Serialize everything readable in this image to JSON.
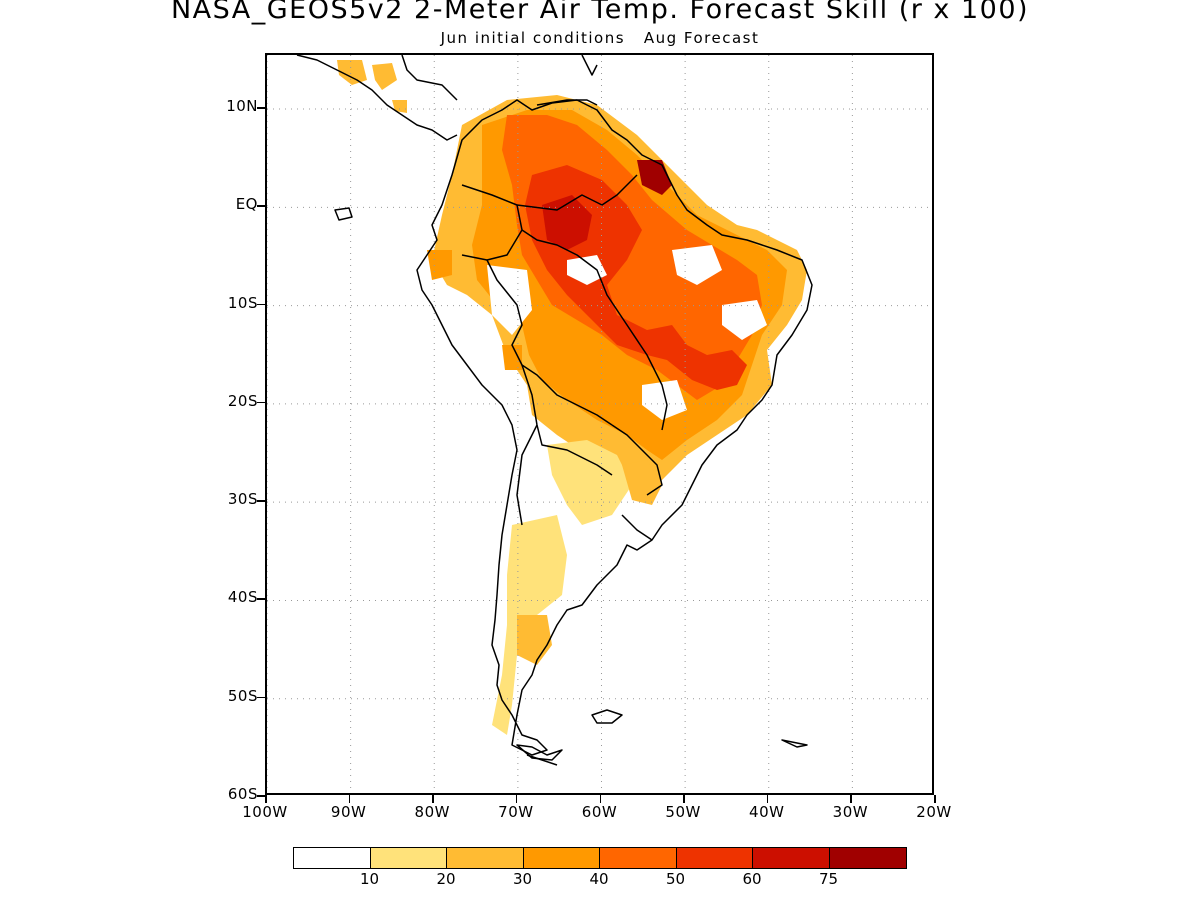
{
  "title": "NASA_GEOS5v2 2-Meter Air Temp. Forecast Skill (r x 100)",
  "subtitle": "Jun initial conditions   Aug Forecast",
  "lat_labels": [
    {
      "lat": 10,
      "text": "10N"
    },
    {
      "lat": 0,
      "text": "EQ"
    },
    {
      "lat": -10,
      "text": "10S"
    },
    {
      "lat": -20,
      "text": "20S"
    },
    {
      "lat": -30,
      "text": "30S"
    },
    {
      "lat": -40,
      "text": "40S"
    },
    {
      "lat": -50,
      "text": "50S"
    },
    {
      "lat": -60,
      "text": "60S"
    }
  ],
  "lon_labels": [
    {
      "lon": -100,
      "text": "100W"
    },
    {
      "lon": -90,
      "text": "90W"
    },
    {
      "lon": -80,
      "text": "80W"
    },
    {
      "lon": -70,
      "text": "70W"
    },
    {
      "lon": -60,
      "text": "60W"
    },
    {
      "lon": -50,
      "text": "50W"
    },
    {
      "lon": -40,
      "text": "40W"
    },
    {
      "lon": -30,
      "text": "30W"
    },
    {
      "lon": -20,
      "text": "20W"
    }
  ],
  "extent": {
    "lon_min": -100,
    "lon_max": -20,
    "lat_min": -60,
    "lat_max": 15.5
  },
  "colorbar": {
    "colors": [
      "#ffffff",
      "#ffe27a",
      "#ffbb33",
      "#ff9900",
      "#ff6600",
      "#ee3300",
      "#cc0f00",
      "#a00000"
    ],
    "labels": [
      "10",
      "20",
      "30",
      "40",
      "50",
      "60",
      "75"
    ]
  },
  "legend_colors": {
    "0-10": "#ffffff",
    "10-20": "#ffe27a",
    "20-30": "#ffbb33",
    "30-40": "#ff9900",
    "40-50": "#ff6600",
    "50-60": "#ee3300",
    "60-75": "#cc0f00",
    "75+": "#a00000"
  }
}
